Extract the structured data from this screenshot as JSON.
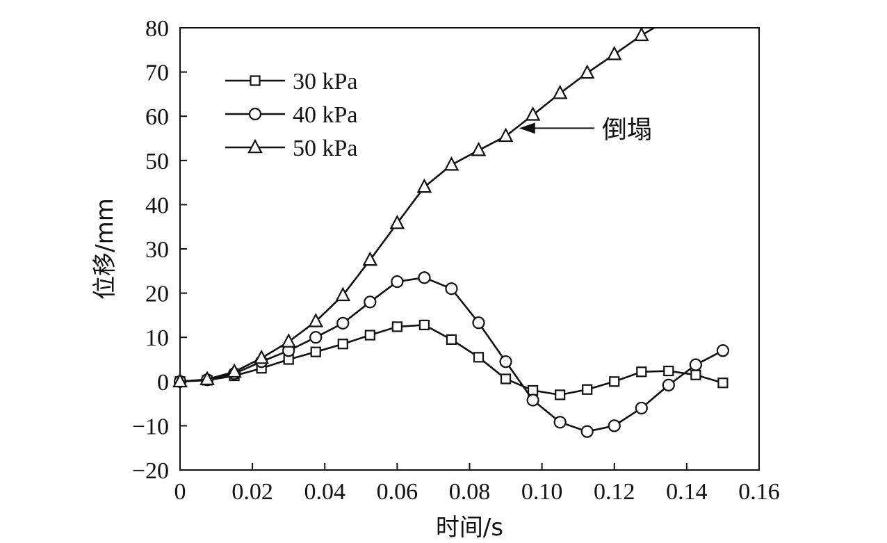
{
  "chart_data": {
    "type": "line",
    "title": "",
    "xlabel": "时间/s",
    "ylabel": "位移/mm",
    "xlim": [
      0,
      0.16
    ],
    "ylim": [
      -20,
      80
    ],
    "x_ticks": [
      0,
      0.02,
      0.04,
      0.06,
      0.08,
      0.1,
      0.12,
      0.14,
      0.16
    ],
    "x_tick_labels": [
      "0",
      "0.02",
      "0.04",
      "0.06",
      "0.08",
      "0.10",
      "0.12",
      "0.14",
      "0.16"
    ],
    "y_ticks": [
      -20,
      -10,
      0,
      10,
      20,
      30,
      40,
      50,
      60,
      70,
      80
    ],
    "y_tick_labels": [
      "−20",
      "−10",
      "0",
      "10",
      "20",
      "30",
      "40",
      "50",
      "60",
      "70",
      "80"
    ],
    "grid": false,
    "legend_position": "top-left",
    "series": [
      {
        "name": "30 kPa",
        "marker": "square",
        "x": [
          0,
          0.0075,
          0.015,
          0.0225,
          0.03,
          0.0375,
          0.045,
          0.0525,
          0.06,
          0.0675,
          0.075,
          0.0825,
          0.09,
          0.0975,
          0.105,
          0.1125,
          0.12,
          0.1275,
          0.135,
          0.1425,
          0.15
        ],
        "y": [
          0,
          0.3,
          1.3,
          3.0,
          5.0,
          6.7,
          8.5,
          10.5,
          12.4,
          12.8,
          9.5,
          5.5,
          0.6,
          -2.0,
          -3.0,
          -1.8,
          0,
          2.2,
          2.4,
          1.5,
          -0.3
        ]
      },
      {
        "name": "40 kPa",
        "marker": "circle",
        "x": [
          0,
          0.0075,
          0.015,
          0.0225,
          0.03,
          0.0375,
          0.045,
          0.0525,
          0.06,
          0.0675,
          0.075,
          0.0825,
          0.09,
          0.0975,
          0.105,
          0.1125,
          0.12,
          0.1275,
          0.135,
          0.1425,
          0.15
        ],
        "y": [
          0,
          0.4,
          1.8,
          4.5,
          7.0,
          10.0,
          13.2,
          18.0,
          22.6,
          23.5,
          21.0,
          13.3,
          4.5,
          -4.2,
          -9.2,
          -11.3,
          -10.0,
          -6.0,
          -0.8,
          3.8,
          7.0
        ]
      },
      {
        "name": "50 kPa",
        "marker": "triangle",
        "x": [
          0,
          0.0075,
          0.015,
          0.0225,
          0.03,
          0.0375,
          0.045,
          0.0525,
          0.06,
          0.0675,
          0.075,
          0.0825,
          0.09,
          0.0975,
          0.105,
          0.1125,
          0.12,
          0.1275
        ],
        "y": [
          0,
          0.5,
          2.2,
          5.3,
          9.0,
          13.6,
          19.5,
          27.5,
          35.8,
          44.0,
          49.0,
          52.3,
          55.5,
          60.3,
          65.2,
          69.8,
          74.0,
          78.3
        ],
        "line_end": {
          "x": 0.131,
          "y": 80
        }
      }
    ],
    "annotation": {
      "text": "倒塌",
      "target_x": 0.0935,
      "target_y": 57.3
    }
  }
}
